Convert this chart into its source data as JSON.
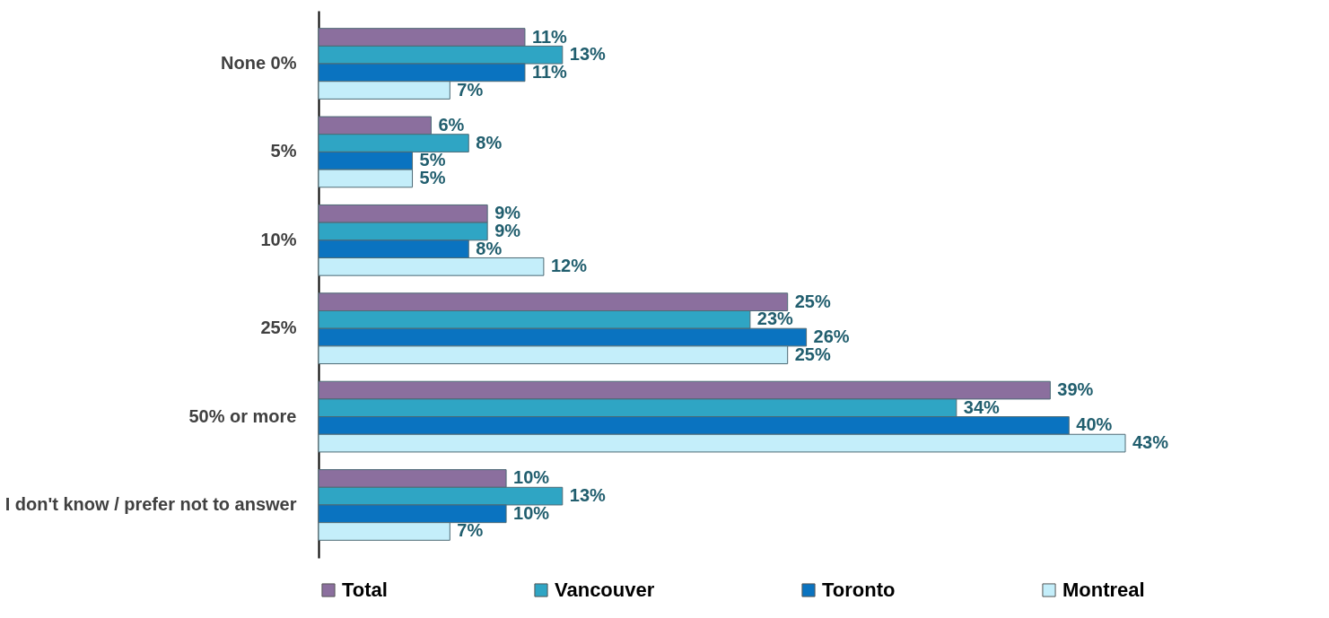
{
  "chart_data": {
    "type": "bar",
    "orientation": "horizontal",
    "categories": [
      "None 0%",
      "5%",
      "10%",
      "25%",
      "50% or more",
      "I don't know / prefer not to answer"
    ],
    "series": [
      {
        "name": "Total",
        "color": "#8b6f9e",
        "values": [
          11,
          6,
          9,
          25,
          39,
          10
        ],
        "value_labels": [
          "11%",
          "6%",
          "9%",
          "25%",
          "39%",
          "10%"
        ]
      },
      {
        "name": "Vancouver",
        "color": "#2fa5c4",
        "values": [
          13,
          8,
          9,
          23,
          34,
          13
        ],
        "value_labels": [
          "13%",
          "8%",
          "9%",
          "23%",
          "34%",
          "13%"
        ]
      },
      {
        "name": "Toronto",
        "color": "#0a73c0",
        "values": [
          11,
          5,
          8,
          26,
          40,
          10
        ],
        "value_labels": [
          "11%",
          "5%",
          "8%",
          "26%",
          "40%",
          "10%"
        ]
      },
      {
        "name": "Montreal",
        "color": "#c4eefa",
        "values": [
          7,
          5,
          12,
          25,
          43,
          7
        ],
        "value_labels": [
          "7%",
          "5%",
          "12%",
          "25%",
          "43%",
          "7%"
        ]
      }
    ],
    "legend": "bottom",
    "grid": false
  }
}
